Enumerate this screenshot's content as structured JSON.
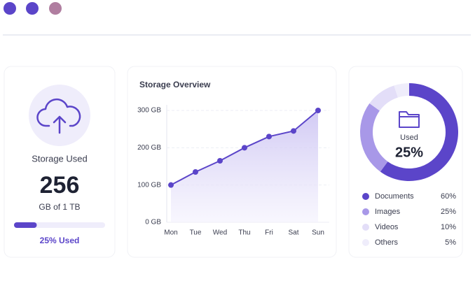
{
  "storage_card": {
    "title": "Storage Used",
    "value": "256",
    "unit": "GB of 1 TB",
    "progress": 25,
    "progress_label": "25% Used"
  },
  "chart_data": [
    {
      "type": "line",
      "title": "Storage Overview",
      "categories": [
        "Mon",
        "Tue",
        "Wed",
        "Thu",
        "Fri",
        "Sat",
        "Sun"
      ],
      "values": [
        100,
        135,
        165,
        200,
        230,
        245,
        300
      ],
      "color": "#5b45c9",
      "ylim": [
        0,
        300
      ],
      "yticks": [
        {
          "value": 0,
          "label": "0 GB"
        },
        {
          "value": 100,
          "label": "100 GB"
        },
        {
          "value": 200,
          "label": "200 GB"
        },
        {
          "value": 300,
          "label": "300 GB"
        }
      ],
      "grid": true
    },
    {
      "type": "pie",
      "center_label": "Used",
      "center_value": "25%",
      "categories": [
        "Documents",
        "Images",
        "Videos",
        "Others"
      ],
      "values": [
        60,
        25,
        10,
        5
      ],
      "value_labels": [
        "60%",
        "25%",
        "10%",
        "5%"
      ],
      "colors": [
        "#5b45c9",
        "#a898e8",
        "#e3def8",
        "#efedfb"
      ]
    }
  ]
}
